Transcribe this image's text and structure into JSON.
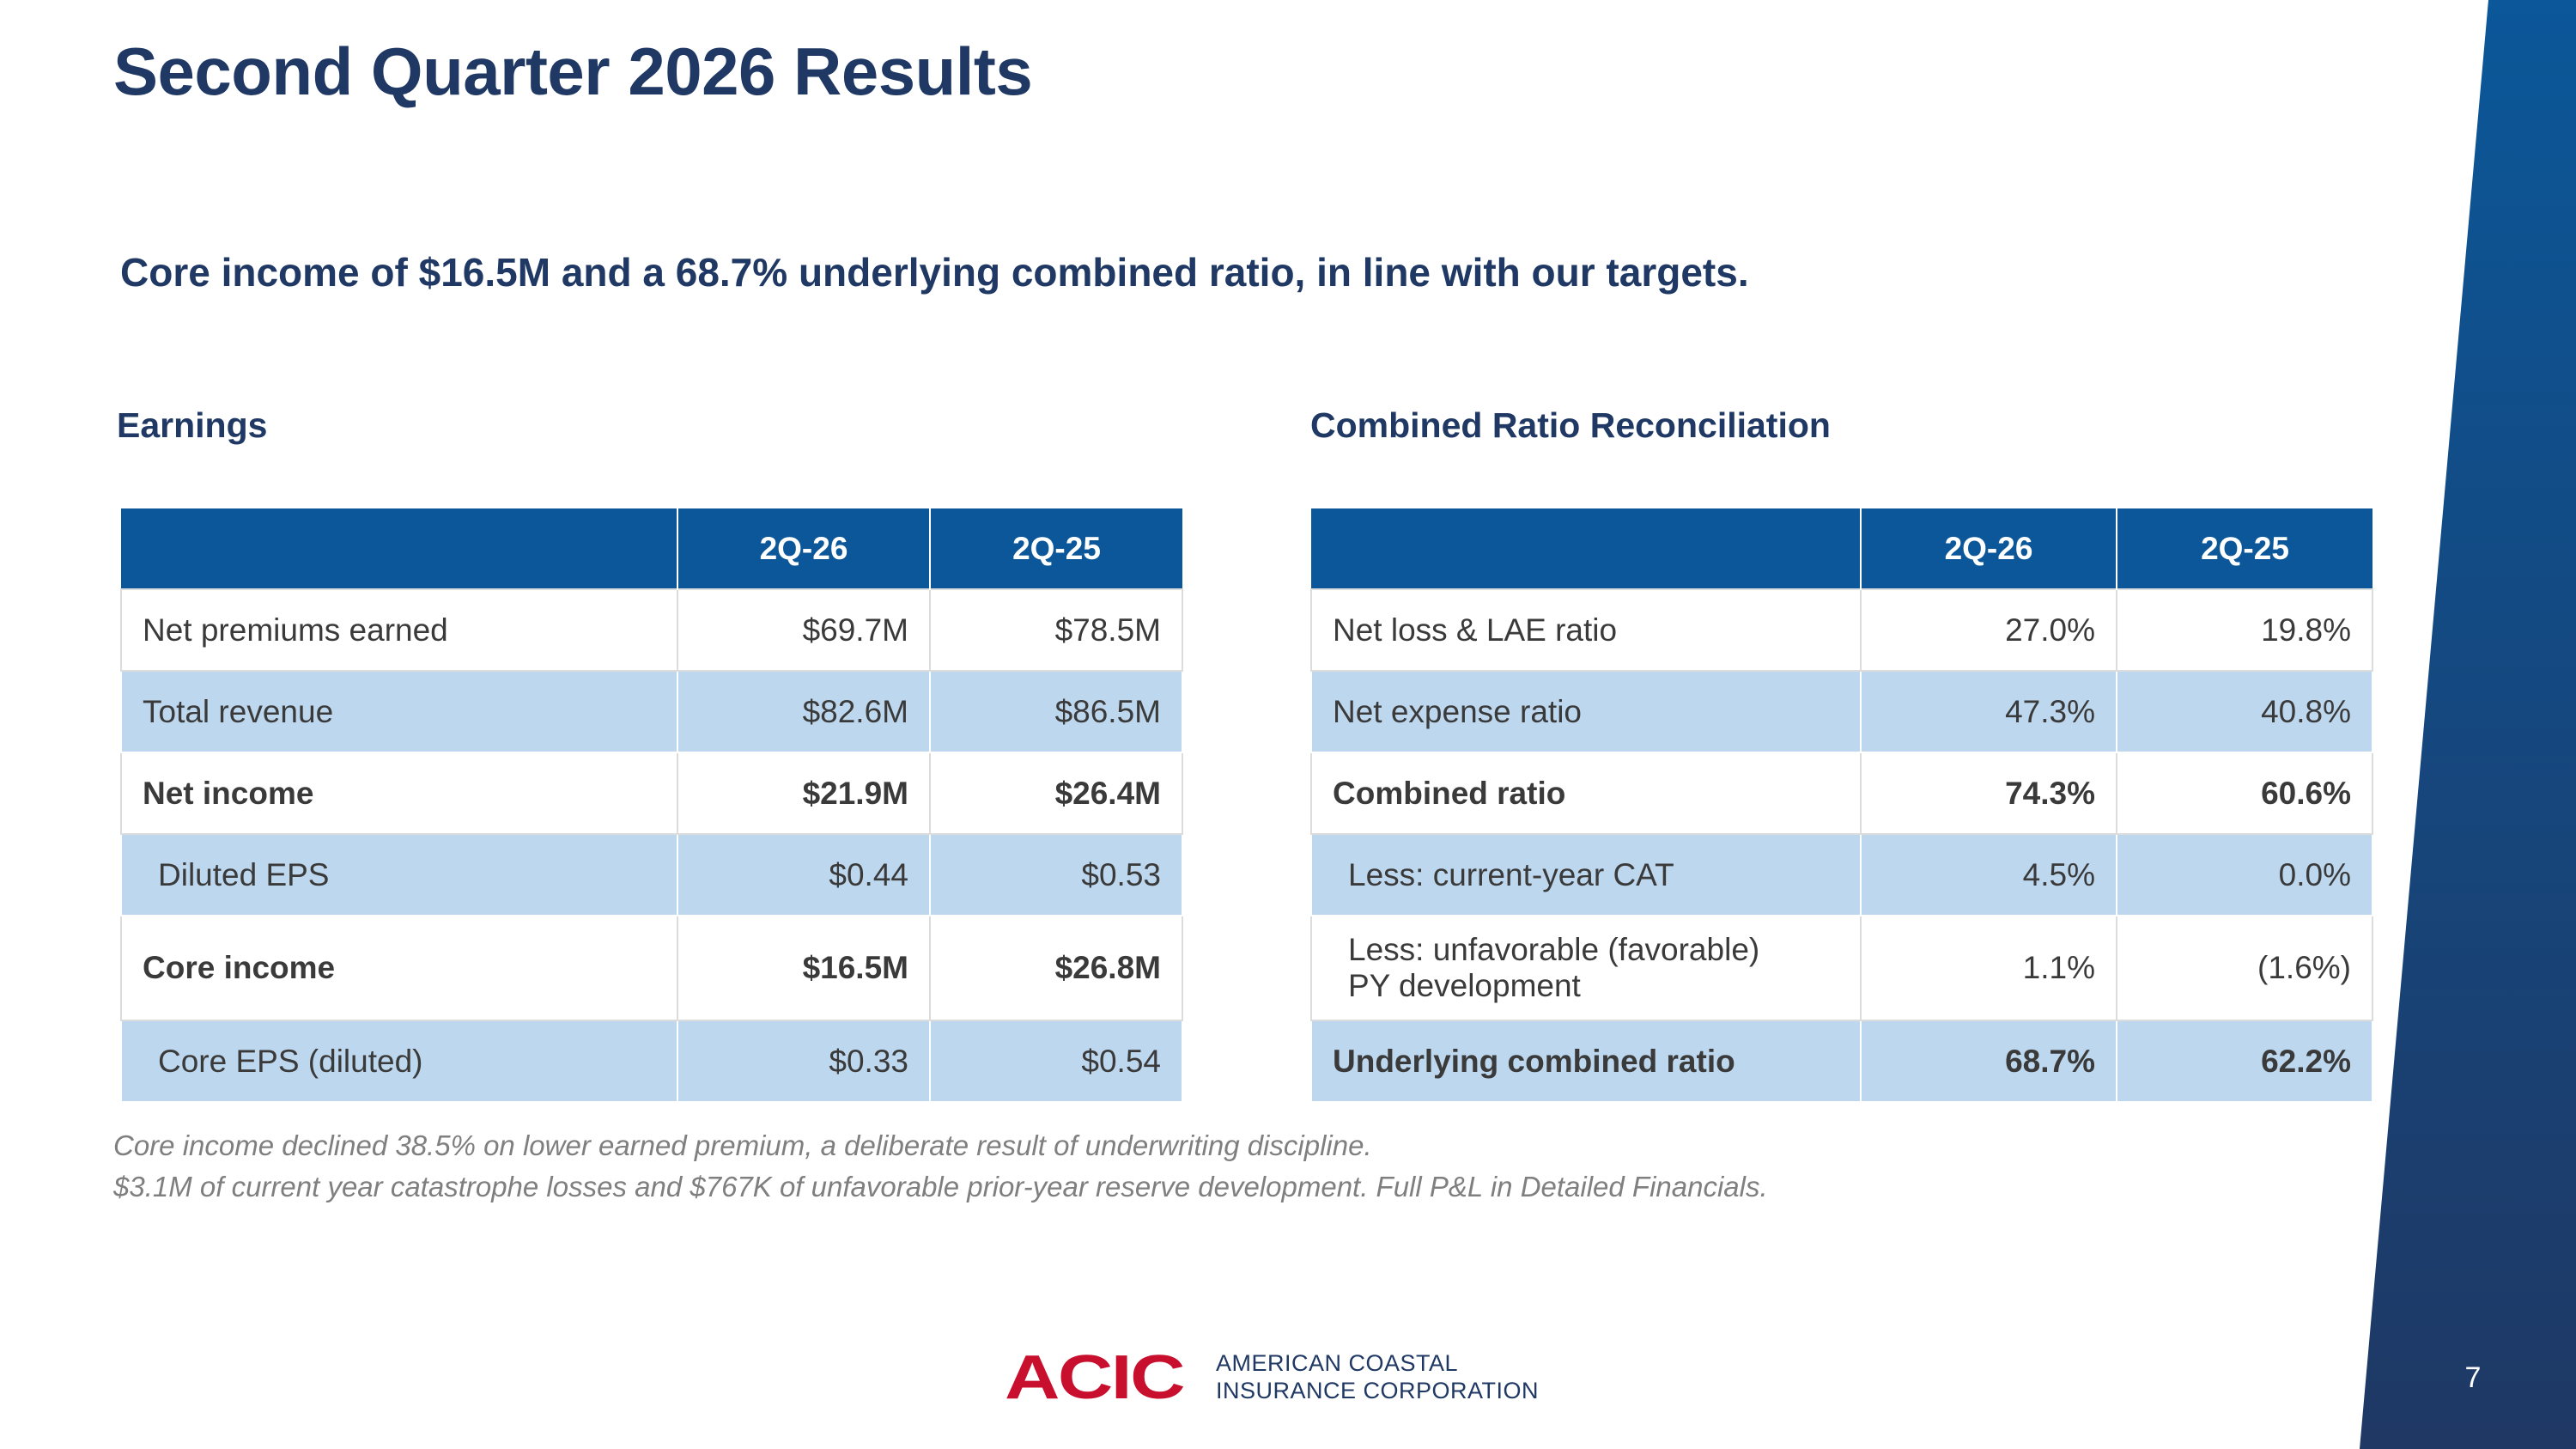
{
  "slide": {
    "title": "Second Quarter 2026 Results",
    "subtitle": "Core income of $16.5M and a 68.7% underlying combined ratio, in line with our targets.",
    "page_number": "7"
  },
  "earnings": {
    "heading": "Earnings",
    "columns": [
      "",
      "2Q-26",
      "2Q-25"
    ],
    "rows": [
      {
        "label": "Net premiums earned",
        "q26": "$69.7M",
        "q25": "$78.5M"
      },
      {
        "label": "Total revenue",
        "q26": "$82.6M",
        "q25": "$86.5M"
      },
      {
        "label": "Net income",
        "q26": "$21.9M",
        "q25": "$26.4M"
      },
      {
        "label": "Diluted EPS",
        "q26": "$0.44",
        "q25": "$0.53"
      },
      {
        "label": "Core income",
        "q26": "$16.5M",
        "q25": "$26.8M"
      },
      {
        "label": "Core EPS (diluted)",
        "q26": "$0.33",
        "q25": "$0.54"
      }
    ]
  },
  "combined_ratio": {
    "heading": "Combined Ratio Reconciliation",
    "columns": [
      "",
      "2Q-26",
      "2Q-25"
    ],
    "rows": [
      {
        "label": "Net loss & LAE ratio",
        "q26": "27.0%",
        "q25": "19.8%"
      },
      {
        "label": "Net expense ratio",
        "q26": "47.3%",
        "q25": "40.8%"
      },
      {
        "label": "Combined ratio",
        "q26": "74.3%",
        "q25": "60.6%"
      },
      {
        "label": "Less: current-year CAT",
        "q26": "4.5%",
        "q25": "0.0%"
      },
      {
        "label_line1": "Less: unfavorable (favorable)",
        "label_line2": "PY development",
        "q26": "1.1%",
        "q25": "(1.6%)"
      },
      {
        "label": "Underlying combined ratio",
        "q26": "68.7%",
        "q25": "62.2%"
      }
    ]
  },
  "footnotes": [
    "Core income declined 38.5% on lower earned premium, a deliberate result of underwriting discipline.",
    "$3.1M of current year catastrophe losses and $767K of unfavorable prior-year reserve development. Full P&L in Detailed Financials."
  ],
  "logo": {
    "mark": "ACIC",
    "line1": "AMERICAN COASTAL",
    "line2": "INSURANCE CORPORATION",
    "brand_color": "#c8102e"
  },
  "colors": {
    "title": "#1f3864",
    "header_fill": "#0b5799",
    "shaded_row": "#bdd7ee",
    "band_top": "#0b5799",
    "band_bottom": "#1f3864"
  }
}
